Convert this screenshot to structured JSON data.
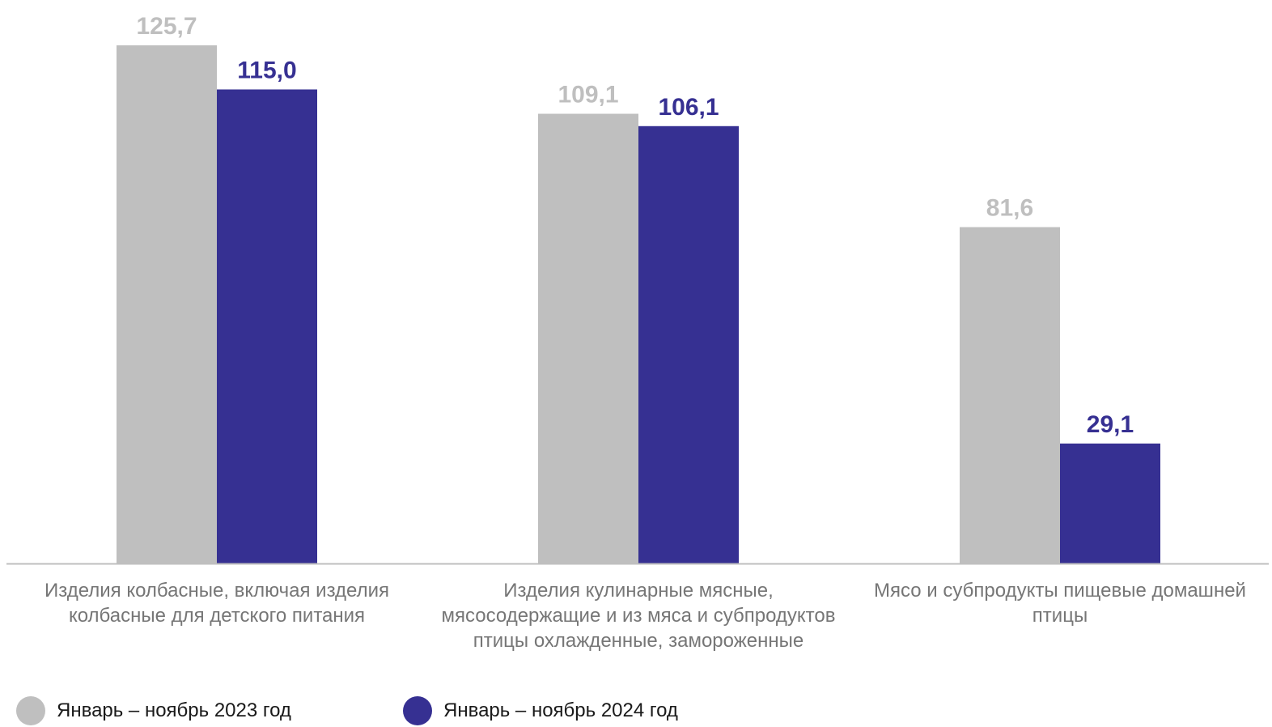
{
  "chart_data": {
    "type": "bar",
    "categories": [
      "Изделия колбасные, включая изделия колбасные для детского питания",
      "Изделия кулинарные мясные, мясосодержащие и из мяса и субпродуктов птицы охлажденные, замороженные",
      "Мясо и субпродукты пищевые домашней птицы"
    ],
    "series": [
      {
        "name": "Январь – ноябрь 2023 год",
        "values": [
          125.7,
          109.1,
          81.6
        ],
        "labels": [
          "125,7",
          "109,1",
          "81,6"
        ],
        "color": "#bfbfbf"
      },
      {
        "name": "Январь – ноябрь 2024 год",
        "values": [
          115.0,
          106.1,
          29.1
        ],
        "labels": [
          "115,0",
          "106,1",
          "29,1"
        ],
        "color": "#363092"
      }
    ],
    "ylim": [
      0,
      125.7
    ],
    "grid": false,
    "legend_position": "bottom-left",
    "colors": {
      "axis": "#bfbfbf",
      "category_text": "#767676",
      "legend_text": "#1a1a1a"
    }
  }
}
